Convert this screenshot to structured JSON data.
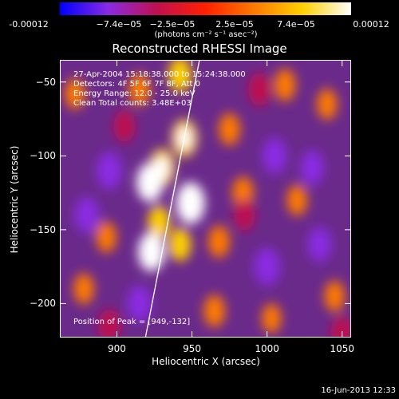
{
  "colorbar": {
    "ticks": [
      "-0.00012",
      "−7.4e−05",
      "−2.5e−05",
      "2.5e−05",
      "7.4e−05",
      "0.00012"
    ],
    "units": "(photons cm⁻² s⁻¹ asec⁻²)",
    "palette": [
      "#0000ff",
      "#8a2be2",
      "#c01050",
      "#ff2000",
      "#ff7a00",
      "#ffd000",
      "#ffffff"
    ]
  },
  "chart_data": {
    "type": "heatmap",
    "title": "Reconstructed RHESSI Image",
    "xlabel": "Heliocentric X (arcsec)",
    "ylabel": "Heliocentric Y (arcsec)",
    "xlim": [
      862,
      1056
    ],
    "ylim": [
      -223,
      -35
    ],
    "xticks": [
      900,
      950,
      1000,
      1050
    ],
    "yticks": [
      -50,
      -100,
      -150,
      -200
    ],
    "colorbar_range": [
      -0.00012,
      0.00012
    ],
    "peak": {
      "x": 949,
      "y": -132
    },
    "limb_line": [
      {
        "x": 919,
        "y": -223
      },
      {
        "x": 955,
        "y": -35
      }
    ],
    "sources": [
      {
        "x": 949,
        "y": -132,
        "value": 0.00012
      },
      {
        "x": 945,
        "y": -88,
        "value": 9e-05
      },
      {
        "x": 942,
        "y": -45,
        "value": 7e-05
      },
      {
        "x": 930,
        "y": -108,
        "value": 9e-05
      },
      {
        "x": 922,
        "y": -118,
        "value": 0.0001
      },
      {
        "x": 923,
        "y": -165,
        "value": 0.0001
      },
      {
        "x": 942,
        "y": -160,
        "value": 6e-05
      },
      {
        "x": 928,
        "y": -145,
        "value": 6e-05
      },
      {
        "x": 872,
        "y": -58,
        "value": 4e-05
      },
      {
        "x": 915,
        "y": -55,
        "value": 5e-05
      },
      {
        "x": 975,
        "y": -82,
        "value": 5e-05
      },
      {
        "x": 984,
        "y": -125,
        "value": 5e-05
      },
      {
        "x": 968,
        "y": -158,
        "value": 5e-05
      },
      {
        "x": 893,
        "y": -155,
        "value": 4e-05
      },
      {
        "x": 878,
        "y": -190,
        "value": 4e-05
      },
      {
        "x": 965,
        "y": -205,
        "value": 5e-05
      },
      {
        "x": 1012,
        "y": -52,
        "value": 5e-05
      },
      {
        "x": 1040,
        "y": -65,
        "value": 4e-05
      },
      {
        "x": 1020,
        "y": -130,
        "value": 4e-05
      },
      {
        "x": 1045,
        "y": -195,
        "value": 4e-05
      },
      {
        "x": 1003,
        "y": -210,
        "value": 3e-05
      },
      {
        "x": 895,
        "y": -110,
        "value": -9e-05
      },
      {
        "x": 880,
        "y": -140,
        "value": -8e-05
      },
      {
        "x": 915,
        "y": -200,
        "value": -8e-05
      },
      {
        "x": 1005,
        "y": -100,
        "value": -8e-05
      },
      {
        "x": 1030,
        "y": -108,
        "value": -7e-05
      },
      {
        "x": 1000,
        "y": -175,
        "value": -9e-05
      },
      {
        "x": 1035,
        "y": -160,
        "value": -7e-05
      },
      {
        "x": 895,
        "y": -215,
        "value": -6e-05
      },
      {
        "x": 1050,
        "y": -220,
        "value": -6e-05
      },
      {
        "x": 995,
        "y": -55,
        "value": -6e-05
      },
      {
        "x": 905,
        "y": -80,
        "value": -5e-05
      },
      {
        "x": 985,
        "y": -140,
        "value": -5e-05
      }
    ]
  },
  "info": {
    "line1": "27-Apr-2004 15:18:38.000 to 15:24:38.000",
    "line2": "Detectors: 4F 5F 6F 7F 8F, Att 0",
    "line3": "Energy Range: 12.0 - 25.0 keV",
    "line4": "Clean     Total counts: 3.48E+03",
    "peak": "Position of Peak = [949,-132]"
  },
  "date_stamp": "16-Jun-2013 12:33"
}
